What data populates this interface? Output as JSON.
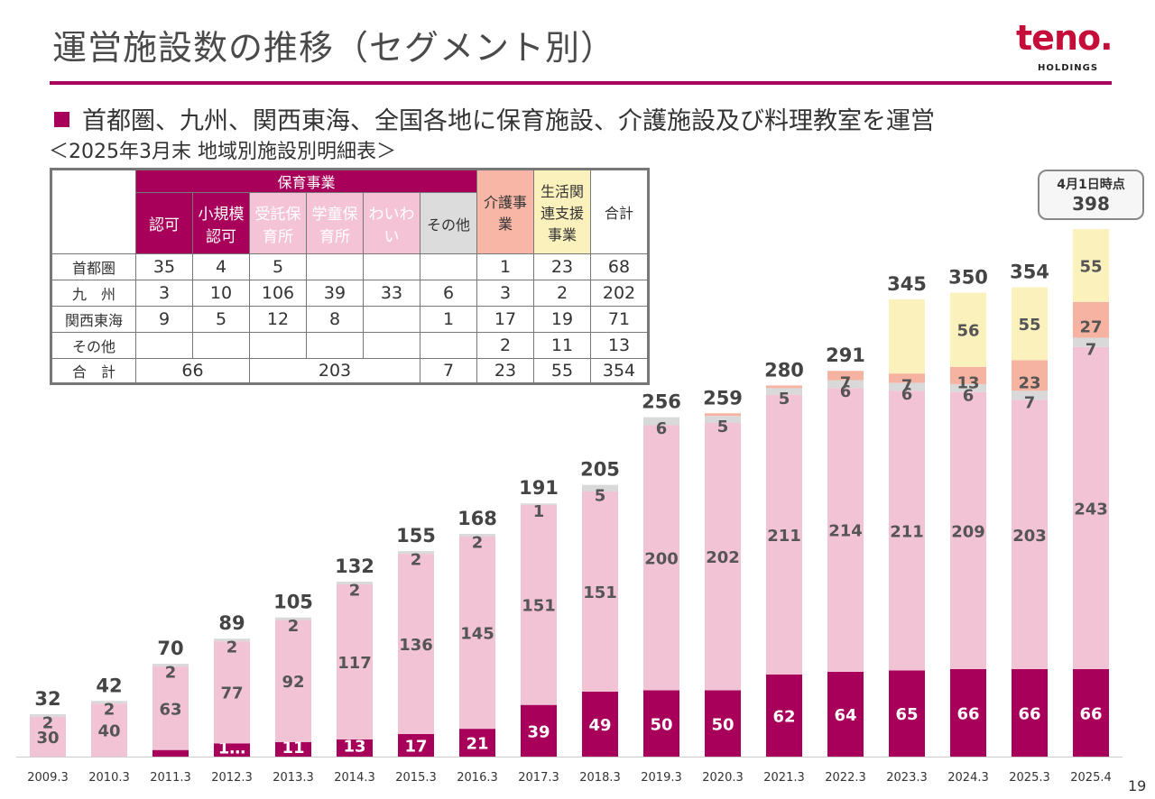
{
  "header": {
    "title": "運営施設数の推移（セグメント別）",
    "logo_text": "teno.",
    "logo_sub": "HOLDINGS",
    "bullet": "首都圏、九州、関西東海、全国各地に保育施設、介護施設及び料理教室を運営",
    "subtitle": "＜2025年3月末 地域別施設別明細表＞",
    "page_number": "19"
  },
  "badge": {
    "line1": "4月1日時点",
    "line2": "398"
  },
  "table": {
    "group_header": "保育事業",
    "headers": {
      "ninka": "認可",
      "shokibo": "小規模認可",
      "jutaku": "受託保育所",
      "gakudo": "学童保育所",
      "waiwai": "わいわい",
      "sonota": "その他",
      "kaigo": "介護事業",
      "seikatsu": "生活関連支援事業",
      "total": "合計"
    },
    "rows": [
      {
        "label": "首都圏",
        "cells": [
          "35",
          "4",
          "5",
          "",
          "",
          "",
          "1",
          "23",
          "68"
        ]
      },
      {
        "label": "九　州",
        "cells": [
          "3",
          "10",
          "106",
          "39",
          "33",
          "6",
          "3",
          "2",
          "202"
        ]
      },
      {
        "label": "関西東海",
        "cells": [
          "9",
          "5",
          "12",
          "8",
          "",
          "1",
          "17",
          "19",
          "71"
        ]
      },
      {
        "label": "その他",
        "cells": [
          "",
          "",
          "",
          "",
          "",
          "",
          "2",
          "11",
          "13"
        ]
      }
    ],
    "total_row": {
      "label": "合　計",
      "a": "66",
      "b": "203",
      "c": "7",
      "d": "23",
      "e": "55",
      "f": "354"
    }
  },
  "colors": {
    "brand": "#a8005a",
    "pink": "#f2c3d5",
    "gray": "#d9d9d9",
    "salmon": "#f7b3a2",
    "yellow": "#fbf1bd"
  },
  "chart_data": {
    "type": "bar",
    "stacked": true,
    "categories": [
      "2009.3",
      "2010.3",
      "2011.3",
      "2012.3",
      "2013.3",
      "2014.3",
      "2015.3",
      "2016.3",
      "2017.3",
      "2018.3",
      "2019.3",
      "2020.3",
      "2021.3",
      "2022.3",
      "2023.3",
      "2024.3",
      "2025.3",
      "2025.4"
    ],
    "series": [
      {
        "color": "#a8005a",
        "values": [
          0,
          0,
          5,
          10,
          11,
          13,
          17,
          21,
          39,
          49,
          50,
          50,
          62,
          64,
          65,
          66,
          66,
          66
        ],
        "labels": [
          "",
          "",
          "",
          "1…",
          "11",
          "13",
          "17",
          "21",
          "39",
          "49",
          "50",
          "50",
          "62",
          "64",
          "65",
          "66",
          "66",
          "66"
        ]
      },
      {
        "color": "#f2c3d5",
        "values": [
          30,
          40,
          63,
          77,
          92,
          117,
          136,
          145,
          151,
          151,
          200,
          202,
          211,
          214,
          211,
          209,
          203,
          243
        ],
        "labels": [
          "30",
          "40",
          "63",
          "77",
          "92",
          "117",
          "136",
          "145",
          "151",
          "151",
          "200",
          "202",
          "211",
          "214",
          "211",
          "209",
          "203",
          "243"
        ]
      },
      {
        "color": "#d9d9d9",
        "values": [
          2,
          2,
          2,
          2,
          2,
          2,
          2,
          2,
          1,
          5,
          6,
          5,
          5,
          6,
          6,
          6,
          7,
          7
        ],
        "labels": [
          "2",
          "2",
          "2",
          "2",
          "2",
          "2",
          "2",
          "2",
          "1",
          "5",
          "6",
          "5",
          "5",
          "6",
          "6",
          "6",
          "7",
          "7"
        ]
      },
      {
        "color": "#f7b3a2",
        "values": [
          0,
          0,
          0,
          0,
          0,
          0,
          0,
          0,
          0,
          0,
          0,
          2,
          2,
          7,
          7,
          13,
          23,
          27
        ],
        "labels": [
          "",
          "",
          "",
          "",
          "",
          "",
          "",
          "",
          "",
          "",
          "",
          "",
          "",
          "7",
          "7",
          "13",
          "23",
          "27"
        ]
      },
      {
        "color": "#fbf1bd",
        "values": [
          0,
          0,
          0,
          0,
          0,
          0,
          0,
          0,
          0,
          0,
          0,
          0,
          0,
          0,
          56,
          56,
          55,
          55
        ],
        "labels": [
          "",
          "",
          "",
          "",
          "",
          "",
          "",
          "",
          "",
          "",
          "",
          "",
          "",
          "",
          "",
          "56",
          "55",
          "55"
        ]
      }
    ],
    "totals": [
      "32",
      "42",
      "70",
      "89",
      "105",
      "132",
      "155",
      "168",
      "191",
      "205",
      "256",
      "259",
      "280",
      "291",
      "345",
      "350",
      "354",
      ""
    ],
    "ylim": [
      0,
      400
    ]
  }
}
